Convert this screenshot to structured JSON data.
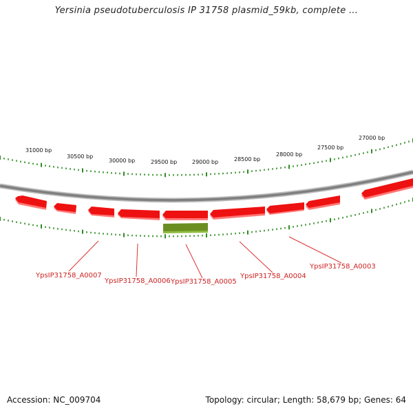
{
  "title": "Yersinia pseudotuberculosis IP 31758 plasmid_59kb, complete ...",
  "footer": {
    "accession": "Accession: NC_009704",
    "summary": "Topology: circular; Length: 58,679 bp; Genes: 64"
  },
  "map": {
    "tick_labels": [
      "31000 bp",
      "30500 bp",
      "30000 bp",
      "29500 bp",
      "29000 bp",
      "28500 bp",
      "28000 bp",
      "27500 bp",
      "27000 bp"
    ],
    "gene_labels": [
      "YpsIP31758_A0007",
      "YpsIP31758_A0006",
      "YpsIP31758_A0005",
      "YpsIP31758_A0004",
      "YpsIP31758_A0003"
    ],
    "colors": {
      "gene": "#ee1111",
      "gene_shadow": "#ff7777",
      "feature": "#6b8e23",
      "backbone": "#7f7f7f",
      "ticks": "#2e8b22",
      "label_line": "#e03030"
    }
  }
}
